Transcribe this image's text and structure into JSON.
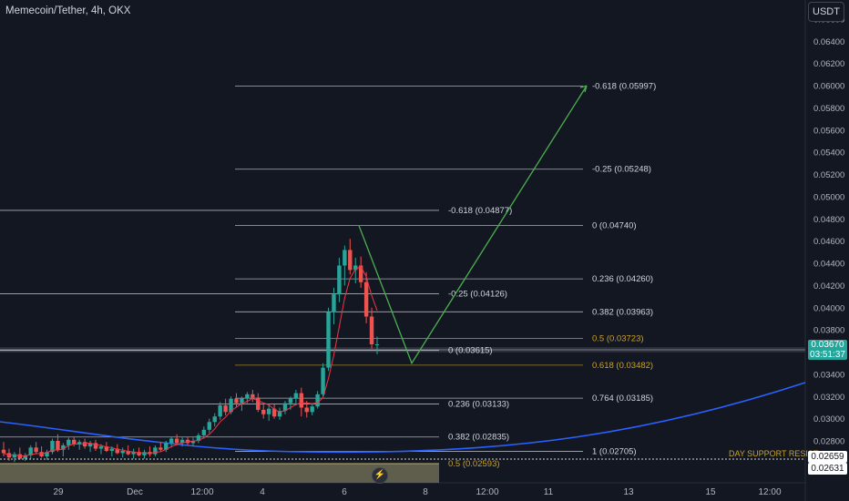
{
  "header": {
    "title": "Memecoin/Tether, 4h, OKX",
    "currency": "USDT"
  },
  "tags": {
    "last_price": "0.03670",
    "countdown": "03:51:37",
    "level_a": "0.02659",
    "level_b": "0.02631"
  },
  "colors": {
    "background": "#131722",
    "up": "#26a69a",
    "down": "#ef5350",
    "projection": "#4caf50",
    "curve": "#2962ff",
    "ma": "#f23645",
    "fib_gold": "#c9a227",
    "fib_white": "#d1d4dc"
  },
  "chart_data": {
    "type": "candlestick",
    "y_range": [
      0.0255,
      0.0665
    ],
    "y_ticks": [
      "0.06600",
      "0.06400",
      "0.06200",
      "0.06000",
      "0.05800",
      "0.05600",
      "0.05400",
      "0.05200",
      "0.05000",
      "0.04800",
      "0.04600",
      "0.04400",
      "0.04200",
      "0.04000",
      "0.03800",
      "0.03600",
      "0.03400",
      "0.03200",
      "0.03000",
      "0.02800"
    ],
    "x_ticks": [
      "29",
      "Dec",
      "12:00",
      "4",
      "6",
      "8",
      "12:00",
      "11",
      "13",
      "15",
      "12:00"
    ],
    "fib_levels": [
      {
        "label": "-0.618 (0.05997)",
        "value": 0.05997,
        "color": "white"
      },
      {
        "label": "-0.25 (0.05248)",
        "value": 0.05248,
        "color": "white"
      },
      {
        "label": "0 (0.04740)",
        "value": 0.0474,
        "color": "white"
      },
      {
        "label": "0.236 (0.04260)",
        "value": 0.0426,
        "color": "white"
      },
      {
        "label": "0.382 (0.03963)",
        "value": 0.03963,
        "color": "white"
      },
      {
        "label": "0.5 (0.03723)",
        "value": 0.03723,
        "color": "gold"
      },
      {
        "label": "0.618 (0.03482)",
        "value": 0.03482,
        "color": "gold"
      },
      {
        "label": "0.764 (0.03185)",
        "value": 0.03185,
        "color": "white"
      },
      {
        "label": "1 (0.02705)",
        "value": 0.02705,
        "color": "white"
      },
      {
        "label": "-0.618 (0.04877)",
        "value": 0.04877,
        "color": "white"
      },
      {
        "label": "-0.25 (0.04126)",
        "value": 0.04126,
        "color": "white"
      },
      {
        "label": "0 (0.03615)",
        "value": 0.03615,
        "color": "white"
      },
      {
        "label": "0.236 (0.03133)",
        "value": 0.03133,
        "color": "white"
      },
      {
        "label": "0.382 (0.02835)",
        "value": 0.02835,
        "color": "white"
      },
      {
        "label": "0.5 (0.02593)",
        "value": 0.02593,
        "color": "gold"
      }
    ],
    "support_label": "DAY SUPPORT RESIST",
    "candles": [
      [
        0.0272,
        0.0279,
        0.0266,
        0.0269
      ],
      [
        0.0269,
        0.0273,
        0.0262,
        0.0265
      ],
      [
        0.0265,
        0.027,
        0.0261,
        0.0268
      ],
      [
        0.0268,
        0.0274,
        0.0263,
        0.0264
      ],
      [
        0.0264,
        0.0269,
        0.0262,
        0.0267
      ],
      [
        0.0267,
        0.0276,
        0.0264,
        0.0274
      ],
      [
        0.0274,
        0.0279,
        0.0268,
        0.027
      ],
      [
        0.027,
        0.0275,
        0.0265,
        0.0266
      ],
      [
        0.0266,
        0.0272,
        0.0263,
        0.027
      ],
      [
        0.027,
        0.0282,
        0.0268,
        0.028
      ],
      [
        0.028,
        0.0286,
        0.027,
        0.0272
      ],
      [
        0.0272,
        0.0278,
        0.0266,
        0.0276
      ],
      [
        0.0276,
        0.0283,
        0.0272,
        0.0281
      ],
      [
        0.0281,
        0.0284,
        0.0275,
        0.0277
      ],
      [
        0.0277,
        0.0281,
        0.0272,
        0.0279
      ],
      [
        0.0279,
        0.0282,
        0.0273,
        0.0275
      ],
      [
        0.0275,
        0.028,
        0.027,
        0.0278
      ],
      [
        0.0278,
        0.0281,
        0.0271,
        0.0273
      ],
      [
        0.0273,
        0.0277,
        0.0268,
        0.0275
      ],
      [
        0.0275,
        0.0279,
        0.027,
        0.0271
      ],
      [
        0.0271,
        0.0275,
        0.0266,
        0.0273
      ],
      [
        0.0273,
        0.0277,
        0.0268,
        0.0269
      ],
      [
        0.0269,
        0.0274,
        0.0265,
        0.0271
      ],
      [
        0.0271,
        0.0276,
        0.0267,
        0.0268
      ],
      [
        0.0268,
        0.0273,
        0.0264,
        0.027
      ],
      [
        0.027,
        0.0274,
        0.0266,
        0.0267
      ],
      [
        0.0267,
        0.0272,
        0.0264,
        0.027
      ],
      [
        0.027,
        0.0275,
        0.0266,
        0.0268
      ],
      [
        0.0268,
        0.0276,
        0.0266,
        0.0274
      ],
      [
        0.0274,
        0.0279,
        0.027,
        0.0272
      ],
      [
        0.0272,
        0.028,
        0.027,
        0.0278
      ],
      [
        0.0278,
        0.0284,
        0.0274,
        0.0282
      ],
      [
        0.0282,
        0.0286,
        0.0276,
        0.0278
      ],
      [
        0.0278,
        0.0283,
        0.0275,
        0.0281
      ],
      [
        0.0281,
        0.0284,
        0.0276,
        0.0278
      ],
      [
        0.0278,
        0.0283,
        0.0275,
        0.028
      ],
      [
        0.028,
        0.0287,
        0.0278,
        0.0285
      ],
      [
        0.0285,
        0.0293,
        0.0282,
        0.029
      ],
      [
        0.029,
        0.03,
        0.0287,
        0.0297
      ],
      [
        0.0297,
        0.0305,
        0.0293,
        0.0302
      ],
      [
        0.0302,
        0.0315,
        0.0299,
        0.0312
      ],
      [
        0.0312,
        0.0318,
        0.0303,
        0.0306
      ],
      [
        0.0306,
        0.032,
        0.0304,
        0.0318
      ],
      [
        0.0318,
        0.0323,
        0.031,
        0.0314
      ],
      [
        0.0314,
        0.032,
        0.0307,
        0.0318
      ],
      [
        0.0318,
        0.0324,
        0.0314,
        0.0322
      ],
      [
        0.0322,
        0.0326,
        0.0315,
        0.0319
      ],
      [
        0.0319,
        0.0323,
        0.0306,
        0.0308
      ],
      [
        0.0308,
        0.0314,
        0.03,
        0.0304
      ],
      [
        0.0304,
        0.0312,
        0.0298,
        0.0309
      ],
      [
        0.0309,
        0.0313,
        0.03,
        0.0302
      ],
      [
        0.0302,
        0.031,
        0.0299,
        0.0307
      ],
      [
        0.0307,
        0.0316,
        0.0304,
        0.0314
      ],
      [
        0.0314,
        0.032,
        0.0308,
        0.0318
      ],
      [
        0.0318,
        0.0326,
        0.0312,
        0.0323
      ],
      [
        0.0323,
        0.0328,
        0.0302,
        0.031
      ],
      [
        0.031,
        0.0316,
        0.0301,
        0.0306
      ],
      [
        0.0306,
        0.0313,
        0.0303,
        0.0311
      ],
      [
        0.0311,
        0.0325,
        0.0309,
        0.0322
      ],
      [
        0.0322,
        0.035,
        0.032,
        0.0346
      ],
      [
        0.0346,
        0.04,
        0.0343,
        0.0396
      ],
      [
        0.0396,
        0.0418,
        0.0385,
        0.0412
      ],
      [
        0.0412,
        0.0445,
        0.0405,
        0.0438
      ],
      [
        0.0438,
        0.0456,
        0.042,
        0.0452
      ],
      [
        0.0452,
        0.0462,
        0.043,
        0.0434
      ],
      [
        0.0434,
        0.0445,
        0.0422,
        0.0438
      ],
      [
        0.0438,
        0.0446,
        0.0418,
        0.0423
      ],
      [
        0.0423,
        0.0432,
        0.0386,
        0.0392
      ],
      [
        0.0392,
        0.04,
        0.0363,
        0.0367
      ],
      [
        0.0367,
        0.0374,
        0.0358,
        0.0367
      ]
    ],
    "projection": {
      "from_value": 0.0474,
      "low_value": 0.035,
      "target_value": 0.06
    }
  }
}
